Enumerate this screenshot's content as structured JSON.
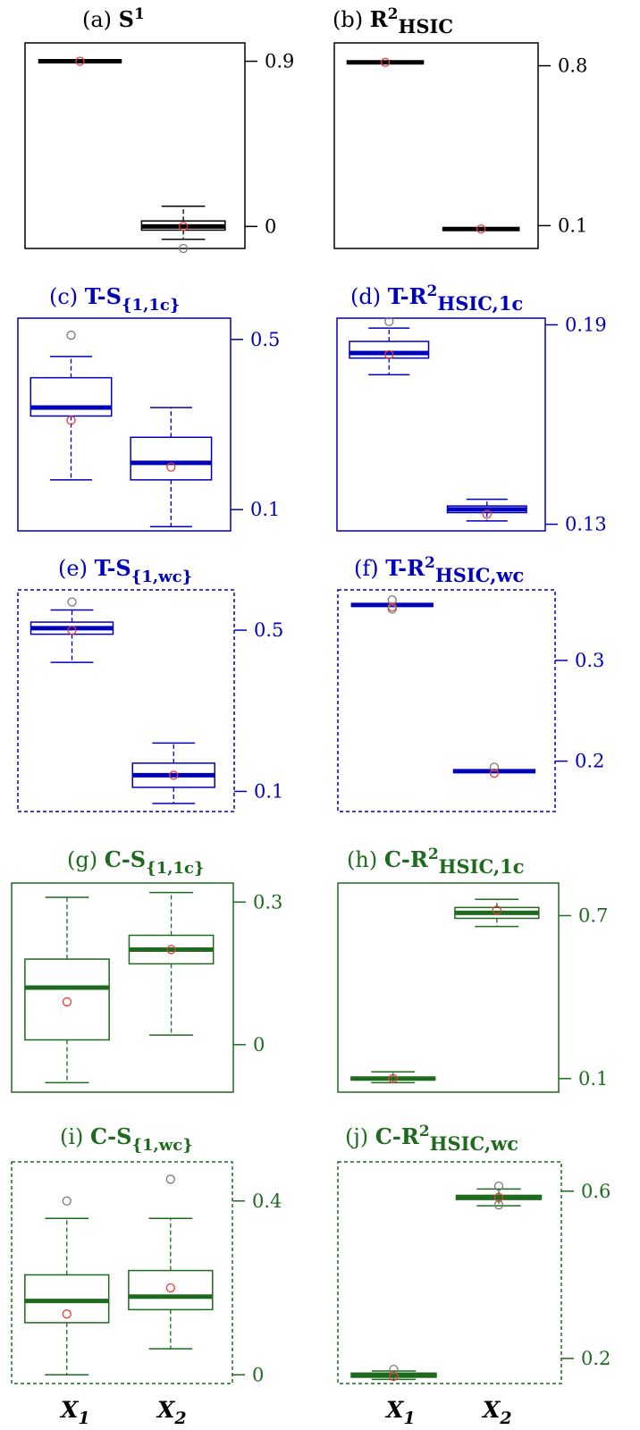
{
  "x_axis_labels": [
    "X",
    "X"
  ],
  "x_axis_subscripts": [
    "1",
    "2"
  ],
  "chart_data": [
    {
      "type": "box",
      "label": "(a)",
      "title_parts": [
        "S",
        "1",
        ""
      ],
      "color": "#000000",
      "border": "solid",
      "ylim": [
        -0.12,
        1.0
      ],
      "ticks": [
        {
          "value": 0.9,
          "label": "0.9"
        },
        {
          "value": 0,
          "label": "0"
        }
      ],
      "boxes": [
        {
          "category": "X1",
          "lower_whisker": 0.9,
          "q1": 0.9,
          "median": 0.9,
          "q3": 0.9,
          "upper_whisker": 0.9,
          "mean": 0.9,
          "outliers": []
        },
        {
          "category": "X2",
          "lower_whisker": -0.07,
          "q1": -0.02,
          "median": 0.0,
          "q3": 0.03,
          "upper_whisker": 0.11,
          "mean": 0.0,
          "outliers": [
            -0.12
          ]
        }
      ]
    },
    {
      "type": "box",
      "label": "(b)",
      "title_parts": [
        "R",
        "2",
        "HSIC"
      ],
      "color": "#000000",
      "border": "solid",
      "ylim": [
        0.0,
        0.9
      ],
      "ticks": [
        {
          "value": 0.8,
          "label": "0.8"
        },
        {
          "value": 0.1,
          "label": "0.1"
        }
      ],
      "boxes": [
        {
          "category": "X1",
          "lower_whisker": 0.815,
          "q1": 0.815,
          "median": 0.815,
          "q3": 0.815,
          "upper_whisker": 0.815,
          "mean": 0.815,
          "outliers": []
        },
        {
          "category": "X2",
          "lower_whisker": 0.085,
          "q1": 0.085,
          "median": 0.085,
          "q3": 0.085,
          "upper_whisker": 0.085,
          "mean": 0.085,
          "outliers": []
        }
      ]
    },
    {
      "type": "box",
      "label": "(c)",
      "title_parts": [
        "T-S",
        "",
        "{1,1c}"
      ],
      "color": "#0000bb",
      "border": "solid",
      "ylim": [
        0.05,
        0.55
      ],
      "ticks": [
        {
          "value": 0.5,
          "label": "0.5"
        },
        {
          "value": 0.1,
          "label": "0.1"
        }
      ],
      "boxes": [
        {
          "category": "X1",
          "lower_whisker": 0.17,
          "q1": 0.32,
          "median": 0.34,
          "q3": 0.41,
          "upper_whisker": 0.46,
          "mean": 0.31,
          "outliers": [
            0.51
          ]
        },
        {
          "category": "X2",
          "lower_whisker": 0.06,
          "q1": 0.17,
          "median": 0.21,
          "q3": 0.27,
          "upper_whisker": 0.34,
          "mean": 0.2,
          "outliers": []
        }
      ]
    },
    {
      "type": "box",
      "label": "(d)",
      "title_parts": [
        "T-R",
        "2",
        "HSIC,1c"
      ],
      "color": "#0000bb",
      "border": "solid",
      "ylim": [
        0.128,
        0.192
      ],
      "ticks": [
        {
          "value": 0.19,
          "label": "0.19"
        },
        {
          "value": 0.13,
          "label": "0.13"
        }
      ],
      "boxes": [
        {
          "category": "X1",
          "lower_whisker": 0.175,
          "q1": 0.18,
          "median": 0.1815,
          "q3": 0.185,
          "upper_whisker": 0.189,
          "mean": 0.181,
          "outliers": [
            0.191
          ]
        },
        {
          "category": "X2",
          "lower_whisker": 0.131,
          "q1": 0.1335,
          "median": 0.1345,
          "q3": 0.1355,
          "upper_whisker": 0.1375,
          "mean": 0.133,
          "outliers": []
        }
      ]
    },
    {
      "type": "box",
      "label": "(e)",
      "title_parts": [
        "T-S",
        "",
        "{1,wc}"
      ],
      "color": "#0000bb",
      "border": "dashed",
      "ylim": [
        0.05,
        0.6
      ],
      "ticks": [
        {
          "value": 0.5,
          "label": "0.5"
        },
        {
          "value": 0.1,
          "label": "0.1"
        }
      ],
      "boxes": [
        {
          "category": "X1",
          "lower_whisker": 0.42,
          "q1": 0.49,
          "median": 0.505,
          "q3": 0.52,
          "upper_whisker": 0.55,
          "mean": 0.5,
          "outliers": [
            0.57
          ]
        },
        {
          "category": "X2",
          "lower_whisker": 0.07,
          "q1": 0.11,
          "median": 0.14,
          "q3": 0.17,
          "upper_whisker": 0.22,
          "mean": 0.14,
          "outliers": []
        }
      ]
    },
    {
      "type": "box",
      "label": "(f)",
      "title_parts": [
        "T-R",
        "2",
        "HSIC,wc"
      ],
      "color": "#0000bb",
      "border": "dashed",
      "ylim": [
        0.15,
        0.37
      ],
      "ticks": [
        {
          "value": 0.3,
          "label": "0.3"
        },
        {
          "value": 0.2,
          "label": "0.2"
        }
      ],
      "boxes": [
        {
          "category": "X1",
          "lower_whisker": 0.355,
          "q1": 0.355,
          "median": 0.355,
          "q3": 0.355,
          "upper_whisker": 0.355,
          "mean": 0.353,
          "outliers": [
            0.36,
            0.351
          ]
        },
        {
          "category": "X2",
          "lower_whisker": 0.19,
          "q1": 0.19,
          "median": 0.19,
          "q3": 0.19,
          "upper_whisker": 0.19,
          "mean": 0.188,
          "outliers": [
            0.194
          ]
        }
      ]
    },
    {
      "type": "box",
      "label": "(g)",
      "title_parts": [
        "C-S",
        "",
        "{1,1c}"
      ],
      "color": "#1e6a1e",
      "border": "solid",
      "ylim": [
        -0.1,
        0.34
      ],
      "ticks": [
        {
          "value": 0.3,
          "label": "0.3"
        },
        {
          "value": 0,
          "label": "0"
        }
      ],
      "boxes": [
        {
          "category": "X1",
          "lower_whisker": -0.08,
          "q1": 0.01,
          "median": 0.12,
          "q3": 0.18,
          "upper_whisker": 0.31,
          "mean": 0.09,
          "outliers": []
        },
        {
          "category": "X2",
          "lower_whisker": 0.02,
          "q1": 0.17,
          "median": 0.2,
          "q3": 0.23,
          "upper_whisker": 0.32,
          "mean": 0.2,
          "outliers": []
        }
      ]
    },
    {
      "type": "box",
      "label": "(h)",
      "title_parts": [
        "C-R",
        "2",
        "HSIC,1c"
      ],
      "color": "#1e6a1e",
      "border": "solid",
      "ylim": [
        0.05,
        0.82
      ],
      "ticks": [
        {
          "value": 0.7,
          "label": "0.7"
        },
        {
          "value": 0.1,
          "label": "0.1"
        }
      ],
      "boxes": [
        {
          "category": "X1",
          "lower_whisker": 0.085,
          "q1": 0.095,
          "median": 0.1,
          "q3": 0.105,
          "upper_whisker": 0.125,
          "mean": 0.1,
          "outliers": []
        },
        {
          "category": "X2",
          "lower_whisker": 0.66,
          "q1": 0.69,
          "median": 0.71,
          "q3": 0.73,
          "upper_whisker": 0.76,
          "mean": 0.72,
          "outliers": []
        }
      ]
    },
    {
      "type": "box",
      "label": "(i)",
      "title_parts": [
        "C-S",
        "",
        "{1,wc}"
      ],
      "color": "#1e6a1e",
      "border": "dashed",
      "ylim": [
        -0.02,
        0.49
      ],
      "ticks": [
        {
          "value": 0.4,
          "label": "0.4"
        },
        {
          "value": 0,
          "label": "0"
        }
      ],
      "boxes": [
        {
          "category": "X1",
          "lower_whisker": 0.0,
          "q1": 0.12,
          "median": 0.17,
          "q3": 0.23,
          "upper_whisker": 0.36,
          "mean": 0.14,
          "outliers": [
            0.4
          ]
        },
        {
          "category": "X2",
          "lower_whisker": 0.06,
          "q1": 0.15,
          "median": 0.18,
          "q3": 0.24,
          "upper_whisker": 0.36,
          "mean": 0.2,
          "outliers": [
            0.45
          ]
        }
      ]
    },
    {
      "type": "box",
      "label": "(j)",
      "title_parts": [
        "C-R",
        "2",
        "HSIC,wc"
      ],
      "color": "#1e6a1e",
      "border": "dashed",
      "ylim": [
        0.14,
        0.67
      ],
      "ticks": [
        {
          "value": 0.6,
          "label": "0.6"
        },
        {
          "value": 0.2,
          "label": "0.2"
        }
      ],
      "boxes": [
        {
          "category": "X1",
          "lower_whisker": 0.15,
          "q1": 0.155,
          "median": 0.16,
          "q3": 0.165,
          "upper_whisker": 0.17,
          "mean": 0.157,
          "outliers": [
            0.174
          ]
        },
        {
          "category": "X2",
          "lower_whisker": 0.565,
          "q1": 0.58,
          "median": 0.585,
          "q3": 0.59,
          "upper_whisker": 0.605,
          "mean": 0.585,
          "outliers": [
            0.612,
            0.567
          ]
        }
      ]
    }
  ]
}
